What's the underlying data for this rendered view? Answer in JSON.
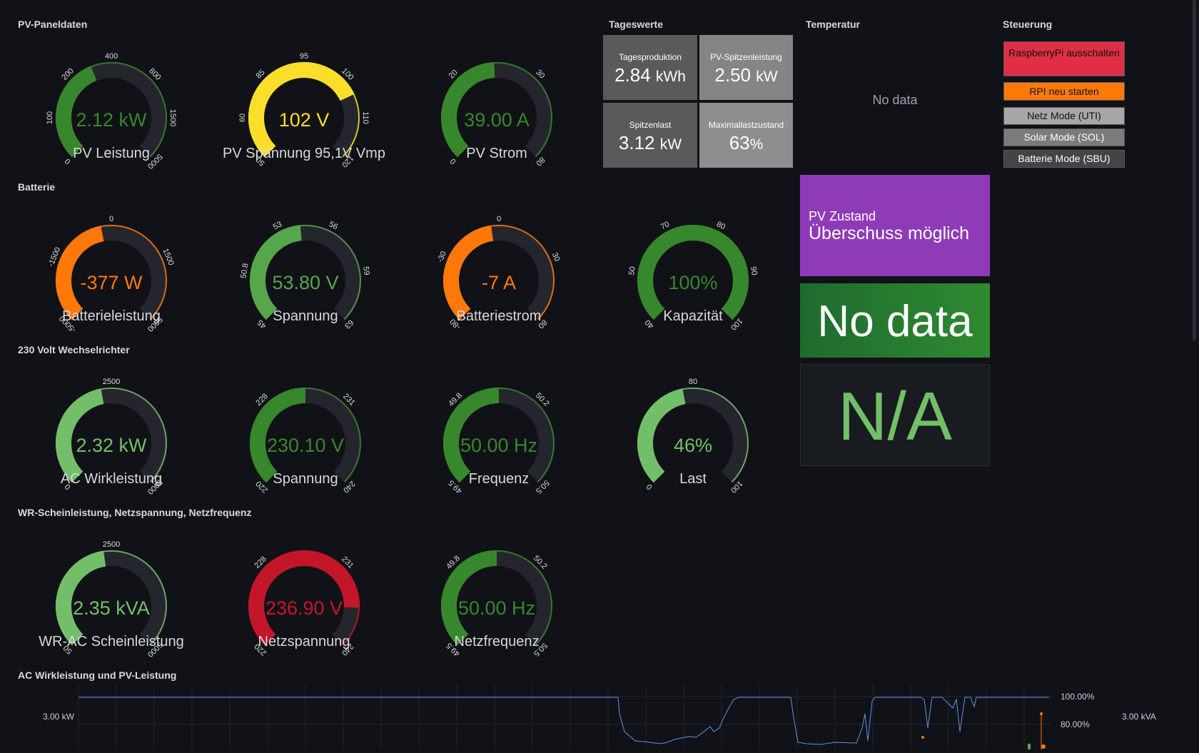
{
  "sections": {
    "pv": "PV-Paneldaten",
    "battery": "Batterie",
    "inverter": "230 Volt Wechselrichter",
    "wr": "WR-Scheinleistung, Netzspannung, Netzfrequenz",
    "chart": "AC Wirkleistung und PV-Leistung",
    "tageswerte": "Tageswerte",
    "temperatur": "Temperatur",
    "steuerung": "Steuerung"
  },
  "gauges": {
    "pv_leistung": {
      "label": "PV Leistung",
      "value": "2.12 kW",
      "fraction": 0.42,
      "color": "#37872d",
      "ticks": [
        "0",
        "100",
        "200",
        "400",
        "800",
        "1500",
        "5000"
      ]
    },
    "pv_spannung": {
      "label": "PV Spannung 95,1V Vmp",
      "value": "102 V",
      "fraction": 0.74,
      "color": "#fade2a",
      "ticks": [
        "50",
        "60",
        "85",
        "95",
        "100",
        "110",
        "120"
      ]
    },
    "pv_strom": {
      "label": "PV Strom",
      "value": "39.00 A",
      "fraction": 0.49,
      "color": "#37872d",
      "ticks": [
        "0",
        "20",
        "30",
        "80"
      ]
    },
    "batterieleistung": {
      "label": "Batterieleistung",
      "value": "-377 W",
      "fraction": 0.46,
      "color": "#ff780a",
      "ticks": [
        "-5000",
        "-1500",
        "0",
        "1500",
        "5000"
      ]
    },
    "batt_spannung": {
      "label": "Spannung",
      "value": "53.80 V",
      "fraction": 0.48,
      "color": "#56a64b",
      "ticks": [
        "45",
        "50.8",
        "53",
        "56",
        "59",
        "63"
      ]
    },
    "batteriestrom": {
      "label": "Batteriestrom",
      "value": "-7 A",
      "fraction": 0.47,
      "color": "#ff780a",
      "ticks": [
        "-80",
        "-30",
        "0",
        "30",
        "80"
      ]
    },
    "kapazitaet": {
      "label": "Kapazität",
      "value": "100%",
      "fraction": 1.0,
      "color": "#37872d",
      "ticks": [
        "40",
        "50",
        "70",
        "80",
        "90",
        "100"
      ]
    },
    "ac_wirkleistung": {
      "label": "AC Wirkleistung",
      "value": "2.32 kW",
      "fraction": 0.46,
      "color": "#73bf69",
      "ticks": [
        "0",
        "2500",
        "5000"
      ]
    },
    "wr_spannung": {
      "label": "Spannung",
      "value": "230.10 V",
      "fraction": 0.5,
      "color": "#37872d",
      "ticks": [
        "220",
        "228",
        "231",
        "240"
      ]
    },
    "frequenz": {
      "label": "Frequenz",
      "value": "50.00 Hz",
      "fraction": 0.5,
      "color": "#37872d",
      "ticks": [
        "49.5",
        "49.8",
        "50.2",
        "50.5"
      ]
    },
    "last": {
      "label": "Last",
      "value": "46%",
      "fraction": 0.46,
      "color": "#73bf69",
      "ticks": [
        "0",
        "80",
        "100"
      ]
    },
    "wr_schein": {
      "label": "WR-AC Scheinleistung",
      "value": "2.35 kVA",
      "fraction": 0.47,
      "color": "#73bf69",
      "ticks": [
        "50",
        "2500",
        "5000"
      ]
    },
    "netzspannung": {
      "label": "Netzspannung",
      "value": "236.90 V",
      "fraction": 0.84,
      "color": "#c4162a",
      "ticks": [
        "220",
        "228",
        "231",
        "240"
      ]
    },
    "netzfrequenz": {
      "label": "Netzfrequenz",
      "value": "50.00 Hz",
      "fraction": 0.5,
      "color": "#37872d",
      "ticks": [
        "49.5",
        "49.8",
        "50.2",
        "50.5"
      ]
    }
  },
  "tageswerte": {
    "tagesproduktion": {
      "title": "Tagesproduktion",
      "value": "2.84",
      "unit": "kWh"
    },
    "pv_spitze": {
      "title": "PV-Spitzenleistung",
      "value": "2.50",
      "unit": "kW"
    },
    "spitzenlast": {
      "title": "Spitzenlast",
      "value": "3.12",
      "unit": "kW"
    },
    "maxlast": {
      "title": "Maximallastzustand",
      "value": "63",
      "unit": "%"
    }
  },
  "temperatur": {
    "no_data": "No data"
  },
  "pv_zustand": {
    "title": "PV Zustand",
    "value": "Überschuss möglich"
  },
  "green_panel": {
    "value": "No data"
  },
  "na_panel": {
    "value": "N/A"
  },
  "steuerung": {
    "btn_shutdown": "RaspberryPi ausschalten",
    "btn_restart": "RPI neu starten",
    "btn_netz": "Netz Mode (UTI)",
    "btn_solar": "Solar Mode (SOL)",
    "btn_batterie": "Batterie Mode (SBU)"
  },
  "chart": {
    "y_left_label": "3.00 kW",
    "y_right1": "100.00%",
    "y_right2": "80.00%",
    "y_right_far": "3.00 kVA"
  },
  "colors": {
    "accent_blue": "#5794f2",
    "purple": "#8f3bb8",
    "green": "#37872d"
  }
}
